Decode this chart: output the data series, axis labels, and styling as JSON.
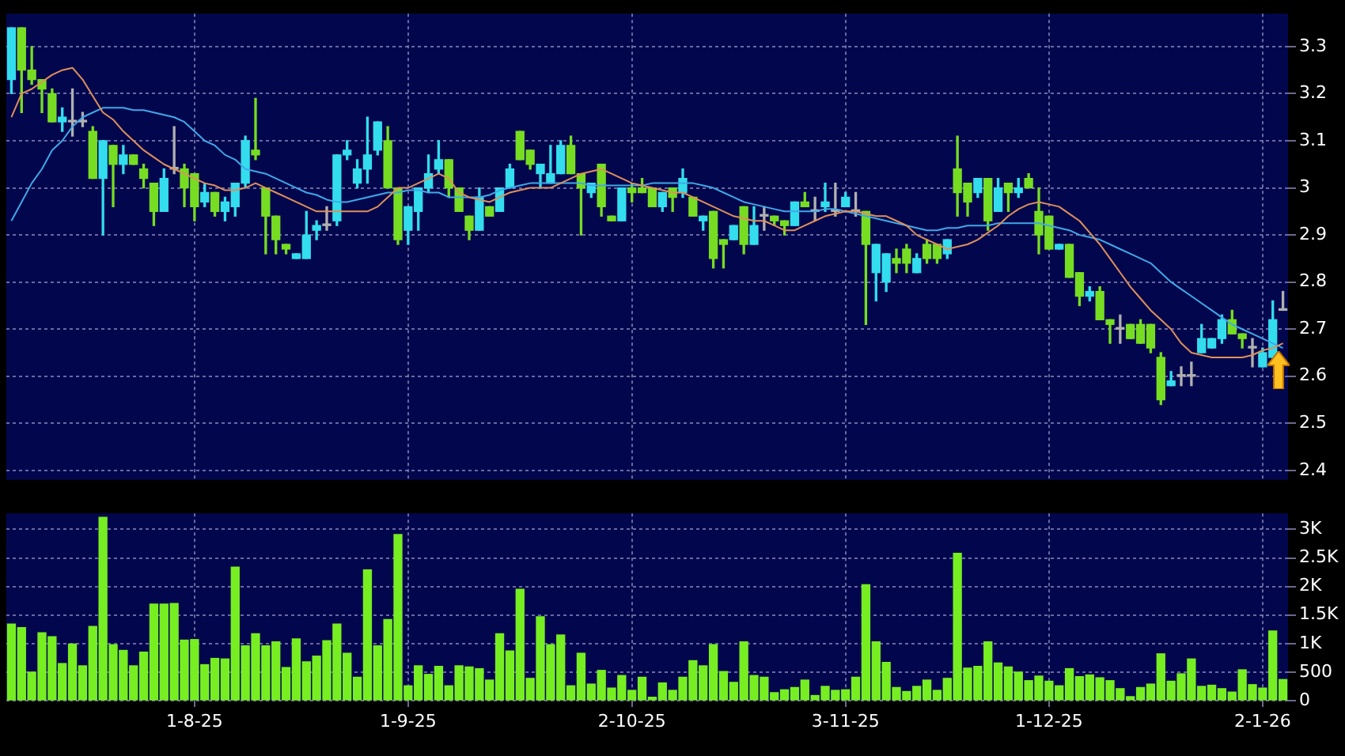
{
  "chart_data": [
    {
      "type": "candlestick",
      "ohlc": [
        [
          3.23,
          3.34,
          3.2,
          3.34
        ],
        [
          3.34,
          3.34,
          3.16,
          3.25
        ],
        [
          3.25,
          3.3,
          3.22,
          3.23
        ],
        [
          3.23,
          3.23,
          3.16,
          3.21
        ],
        [
          3.2,
          3.21,
          3.14,
          3.14
        ],
        [
          3.14,
          3.17,
          3.12,
          3.15
        ],
        [
          3.14,
          3.21,
          3.11,
          3.14
        ],
        [
          3.14,
          3.16,
          3.13,
          3.14
        ],
        [
          3.12,
          3.13,
          3.02,
          3.02
        ],
        [
          3.02,
          3.1,
          2.9,
          3.1
        ],
        [
          3.09,
          3.09,
          2.96,
          3.05
        ],
        [
          3.05,
          3.09,
          3.03,
          3.07
        ],
        [
          3.07,
          3.07,
          3.05,
          3.05
        ],
        [
          3.04,
          3.05,
          3.0,
          3.02
        ],
        [
          3.01,
          3.01,
          2.92,
          2.95
        ],
        [
          2.95,
          3.04,
          2.95,
          3.02
        ],
        [
          3.04,
          3.13,
          3.03,
          3.04
        ],
        [
          3.04,
          3.05,
          2.96,
          3.0
        ],
        [
          3.03,
          3.03,
          2.93,
          2.96
        ],
        [
          2.97,
          3.01,
          2.96,
          2.99
        ],
        [
          2.99,
          2.99,
          2.94,
          2.95
        ],
        [
          2.95,
          2.98,
          2.93,
          2.97
        ],
        [
          2.96,
          3.01,
          2.94,
          3.01
        ],
        [
          3.01,
          3.11,
          3.0,
          3.1
        ],
        [
          3.08,
          3.19,
          3.06,
          3.07
        ],
        [
          3.0,
          3.0,
          2.86,
          2.94
        ],
        [
          2.94,
          2.94,
          2.86,
          2.89
        ],
        [
          2.88,
          2.88,
          2.86,
          2.87
        ],
        [
          2.85,
          2.86,
          2.85,
          2.86
        ],
        [
          2.85,
          2.95,
          2.85,
          2.9
        ],
        [
          2.91,
          2.93,
          2.89,
          2.92
        ],
        [
          2.92,
          2.96,
          2.91,
          2.92
        ],
        [
          2.93,
          3.07,
          2.92,
          3.07
        ],
        [
          3.07,
          3.1,
          3.06,
          3.08
        ],
        [
          3.01,
          3.06,
          3.0,
          3.04
        ],
        [
          3.04,
          3.15,
          3.01,
          3.07
        ],
        [
          3.08,
          3.14,
          3.07,
          3.14
        ],
        [
          3.1,
          3.13,
          3.0,
          3.0
        ],
        [
          3.0,
          3.0,
          2.88,
          2.89
        ],
        [
          2.91,
          2.96,
          2.88,
          2.96
        ],
        [
          2.95,
          3.0,
          2.91,
          3.0
        ],
        [
          3.0,
          3.07,
          2.99,
          3.03
        ],
        [
          3.04,
          3.1,
          3.03,
          3.06
        ],
        [
          3.06,
          3.06,
          2.98,
          3.0
        ],
        [
          3.0,
          3.0,
          2.95,
          2.95
        ],
        [
          2.94,
          2.94,
          2.89,
          2.91
        ],
        [
          2.91,
          3.0,
          2.91,
          2.98
        ],
        [
          2.96,
          2.96,
          2.94,
          2.94
        ],
        [
          2.95,
          3.0,
          2.95,
          3.0
        ],
        [
          3.0,
          3.05,
          3.0,
          3.04
        ],
        [
          3.12,
          3.12,
          3.06,
          3.06
        ],
        [
          3.08,
          3.08,
          3.04,
          3.05
        ],
        [
          3.03,
          3.05,
          3.0,
          3.05
        ],
        [
          3.01,
          3.09,
          3.01,
          3.03
        ],
        [
          3.03,
          3.1,
          3.03,
          3.09
        ],
        [
          3.09,
          3.11,
          3.03,
          3.03
        ],
        [
          3.03,
          3.03,
          2.9,
          3.0
        ],
        [
          2.99,
          3.01,
          2.98,
          3.01
        ],
        [
          3.05,
          3.05,
          2.94,
          2.96
        ],
        [
          2.94,
          2.94,
          2.93,
          2.93
        ],
        [
          2.93,
          3.0,
          2.93,
          3.0
        ],
        [
          3.0,
          3.01,
          2.97,
          2.99
        ],
        [
          3.0,
          3.02,
          2.99,
          2.99
        ],
        [
          3.0,
          3.0,
          2.96,
          2.96
        ],
        [
          2.96,
          2.99,
          2.95,
          2.99
        ],
        [
          3.0,
          3.0,
          2.95,
          2.98
        ],
        [
          2.99,
          3.04,
          2.98,
          3.02
        ],
        [
          2.98,
          2.98,
          2.94,
          2.94
        ],
        [
          2.93,
          2.94,
          2.91,
          2.94
        ],
        [
          2.95,
          2.95,
          2.83,
          2.85
        ],
        [
          2.89,
          2.89,
          2.83,
          2.88
        ],
        [
          2.89,
          2.92,
          2.89,
          2.92
        ],
        [
          2.96,
          2.96,
          2.86,
          2.88
        ],
        [
          2.88,
          2.96,
          2.88,
          2.92
        ],
        [
          2.94,
          2.96,
          2.91,
          2.94
        ],
        [
          2.94,
          2.94,
          2.92,
          2.93
        ],
        [
          2.93,
          2.93,
          2.9,
          2.92
        ],
        [
          2.92,
          2.97,
          2.92,
          2.97
        ],
        [
          2.97,
          2.99,
          2.96,
          2.96
        ],
        [
          2.95,
          2.98,
          2.93,
          2.95
        ],
        [
          2.96,
          3.01,
          2.95,
          2.97
        ],
        [
          2.95,
          3.01,
          2.94,
          2.95
        ],
        [
          2.96,
          2.99,
          2.96,
          2.98
        ],
        [
          2.95,
          2.99,
          2.94,
          2.95
        ],
        [
          2.95,
          2.95,
          2.71,
          2.88
        ],
        [
          2.82,
          2.88,
          2.76,
          2.88
        ],
        [
          2.8,
          2.86,
          2.78,
          2.86
        ],
        [
          2.85,
          2.87,
          2.82,
          2.84
        ],
        [
          2.87,
          2.88,
          2.82,
          2.84
        ],
        [
          2.82,
          2.86,
          2.82,
          2.85
        ],
        [
          2.88,
          2.89,
          2.84,
          2.85
        ],
        [
          2.88,
          2.88,
          2.84,
          2.85
        ],
        [
          2.86,
          2.89,
          2.85,
          2.89
        ],
        [
          3.04,
          3.11,
          2.94,
          2.99
        ],
        [
          3.01,
          3.01,
          2.94,
          2.97
        ],
        [
          2.99,
          3.02,
          2.98,
          3.02
        ],
        [
          3.02,
          3.02,
          2.91,
          2.93
        ],
        [
          2.95,
          3.02,
          2.95,
          3.0
        ],
        [
          3.01,
          3.01,
          2.95,
          2.99
        ],
        [
          2.99,
          3.02,
          2.98,
          3.0
        ],
        [
          3.02,
          3.03,
          3.0,
          3.0
        ],
        [
          2.95,
          3.0,
          2.86,
          2.9
        ],
        [
          2.94,
          2.94,
          2.87,
          2.87
        ],
        [
          2.87,
          2.88,
          2.87,
          2.88
        ],
        [
          2.88,
          2.88,
          2.81,
          2.81
        ],
        [
          2.82,
          2.82,
          2.75,
          2.77
        ],
        [
          2.77,
          2.79,
          2.76,
          2.78
        ],
        [
          2.78,
          2.79,
          2.72,
          2.72
        ],
        [
          2.72,
          2.72,
          2.67,
          2.71
        ],
        [
          2.7,
          2.73,
          2.67,
          2.7
        ],
        [
          2.71,
          2.71,
          2.68,
          2.68
        ],
        [
          2.71,
          2.72,
          2.67,
          2.67
        ],
        [
          2.71,
          2.71,
          2.65,
          2.66
        ],
        [
          2.64,
          2.65,
          2.54,
          2.55
        ],
        [
          2.58,
          2.61,
          2.58,
          2.59
        ],
        [
          2.6,
          2.62,
          2.58,
          2.6
        ],
        [
          2.6,
          2.63,
          2.58,
          2.6
        ],
        [
          2.65,
          2.71,
          2.65,
          2.68
        ],
        [
          2.66,
          2.68,
          2.66,
          2.68
        ],
        [
          2.68,
          2.73,
          2.67,
          2.72
        ],
        [
          2.72,
          2.74,
          2.69,
          2.69
        ],
        [
          2.69,
          2.69,
          2.66,
          2.68
        ],
        [
          2.66,
          2.68,
          2.62,
          2.66
        ],
        [
          2.62,
          2.66,
          2.62,
          2.65
        ],
        [
          2.64,
          2.76,
          2.64,
          2.72
        ],
        [
          2.74,
          2.78,
          2.74,
          2.74
        ]
      ],
      "colors": [
        "#33ddee",
        "#77dd22",
        "#77dd22",
        "#77dd22",
        "#77dd22",
        "#33ddee",
        "#b0b0b0",
        "#b0b0b0",
        "#77dd22",
        "#33ddee",
        "#77dd22",
        "#33ddee",
        "#77dd22",
        "#77dd22",
        "#77dd22",
        "#33ddee",
        "#b0b0b0",
        "#77dd22",
        "#77dd22",
        "#33ddee",
        "#77dd22",
        "#33ddee",
        "#33ddee",
        "#33ddee",
        "#77dd22",
        "#77dd22",
        "#77dd22",
        "#77dd22",
        "#33ddee",
        "#33ddee",
        "#33ddee",
        "#b0b0b0",
        "#33ddee",
        "#33ddee",
        "#33ddee",
        "#33ddee",
        "#33ddee",
        "#77dd22",
        "#77dd22",
        "#33ddee",
        "#33ddee",
        "#33ddee",
        "#33ddee",
        "#77dd22",
        "#77dd22",
        "#77dd22",
        "#33ddee",
        "#77dd22",
        "#33ddee",
        "#33ddee",
        "#77dd22",
        "#77dd22",
        "#33ddee",
        "#33ddee",
        "#33ddee",
        "#77dd22",
        "#77dd22",
        "#33ddee",
        "#77dd22",
        "#77dd22",
        "#33ddee",
        "#77dd22",
        "#77dd22",
        "#77dd22",
        "#33ddee",
        "#77dd22",
        "#33ddee",
        "#77dd22",
        "#33ddee",
        "#77dd22",
        "#77dd22",
        "#33ddee",
        "#77dd22",
        "#33ddee",
        "#b0b0b0",
        "#77dd22",
        "#77dd22",
        "#33ddee",
        "#77dd22",
        "#b0b0b0",
        "#33ddee",
        "#b0b0b0",
        "#33ddee",
        "#b0b0b0",
        "#77dd22",
        "#33ddee",
        "#33ddee",
        "#77dd22",
        "#77dd22",
        "#33ddee",
        "#77dd22",
        "#77dd22",
        "#33ddee",
        "#77dd22",
        "#77dd22",
        "#33ddee",
        "#77dd22",
        "#33ddee",
        "#77dd22",
        "#33ddee",
        "#77dd22",
        "#77dd22",
        "#77dd22",
        "#33ddee",
        "#77dd22",
        "#77dd22",
        "#33ddee",
        "#77dd22",
        "#77dd22",
        "#b0b0b0",
        "#77dd22",
        "#77dd22",
        "#77dd22",
        "#77dd22",
        "#33ddee",
        "#b0b0b0",
        "#b0b0b0",
        "#33ddee",
        "#33ddee",
        "#33ddee",
        "#77dd22",
        "#77dd22",
        "#b0b0b0",
        "#33ddee",
        "#33ddee",
        "#b0b0b0"
      ],
      "series": [
        {
          "type": "line",
          "color": "#e0905a",
          "values": [
            3.15,
            3.2,
            3.21,
            3.225,
            3.24,
            3.25,
            3.255,
            3.23,
            3.195,
            3.16,
            3.145,
            3.12,
            3.1,
            3.08,
            3.065,
            3.05,
            3.04,
            3.03,
            3.02,
            3.01,
            3.005,
            2.995,
            2.995,
            3.0,
            3.01,
            3.0,
            2.99,
            2.98,
            2.97,
            2.96,
            2.95,
            2.95,
            2.95,
            2.95,
            2.95,
            2.95,
            2.96,
            2.98,
            3.0,
            3.0,
            3.01,
            3.02,
            3.03,
            3.02,
            2.99,
            2.98,
            2.975,
            2.97,
            2.98,
            2.99,
            2.995,
            3.0,
            3.0,
            3.0,
            3.01,
            3.02,
            3.03,
            3.035,
            3.04,
            3.03,
            3.02,
            3.01,
            3.005,
            3.0,
            2.995,
            2.99,
            2.99,
            2.98,
            2.97,
            2.96,
            2.95,
            2.94,
            2.935,
            2.93,
            2.93,
            2.92,
            2.91,
            2.91,
            2.92,
            2.93,
            2.94,
            2.945,
            2.95,
            2.95,
            2.945,
            2.94,
            2.94,
            2.93,
            2.92,
            2.9,
            2.89,
            2.88,
            2.87,
            2.875,
            2.88,
            2.89,
            2.905,
            2.92,
            2.94,
            2.955,
            2.965,
            2.97,
            2.965,
            2.96,
            2.945,
            2.93,
            2.905,
            2.88,
            2.85,
            2.82,
            2.79,
            2.765,
            2.74,
            2.72,
            2.7,
            2.67,
            2.65,
            2.645,
            2.64,
            2.64,
            2.64,
            2.64,
            2.645,
            2.655,
            2.66,
            2.67
          ]
        },
        {
          "type": "line",
          "color": "#40a8e8",
          "values": [
            2.93,
            2.97,
            3.01,
            3.04,
            3.08,
            3.1,
            3.13,
            3.15,
            3.16,
            3.17,
            3.17,
            3.17,
            3.165,
            3.165,
            3.16,
            3.155,
            3.15,
            3.14,
            3.12,
            3.1,
            3.09,
            3.07,
            3.06,
            3.04,
            3.035,
            3.03,
            3.02,
            3.01,
            3.0,
            2.99,
            2.985,
            2.975,
            2.97,
            2.97,
            2.975,
            2.98,
            2.985,
            2.99,
            2.99,
            2.995,
            2.995,
            2.99,
            2.99,
            2.98,
            2.98,
            2.98,
            2.98,
            2.985,
            2.995,
            3.0,
            3.005,
            3.01,
            3.01,
            3.01,
            3.01,
            3.01,
            3.01,
            3.005,
            3.005,
            3.005,
            3.005,
            3.005,
            3.005,
            3.01,
            3.01,
            3.01,
            3.01,
            3.01,
            3.005,
            3.0,
            2.99,
            2.98,
            2.97,
            2.965,
            2.96,
            2.955,
            2.95,
            2.95,
            2.95,
            2.95,
            2.955,
            2.955,
            2.95,
            2.945,
            2.94,
            2.935,
            2.93,
            2.925,
            2.92,
            2.915,
            2.91,
            2.91,
            2.915,
            2.915,
            2.92,
            2.92,
            2.92,
            2.925,
            2.925,
            2.925,
            2.925,
            2.925,
            2.92,
            2.915,
            2.91,
            2.9,
            2.895,
            2.89,
            2.88,
            2.87,
            2.86,
            2.85,
            2.84,
            2.82,
            2.8,
            2.785,
            2.77,
            2.755,
            2.74,
            2.725,
            2.71,
            2.7,
            2.69,
            2.68,
            2.67,
            2.66
          ]
        }
      ],
      "ylim": [
        2.38,
        3.37
      ],
      "yticks": [
        2.4,
        2.5,
        2.6,
        2.7,
        2.8,
        2.9,
        3,
        3.1,
        3.2,
        3.3
      ],
      "grid": true,
      "tick_labels": "y"
    },
    {
      "type": "bar",
      "categories": [
        null,
        null,
        null,
        null,
        null,
        null,
        null,
        null,
        null,
        null,
        null,
        null,
        null,
        null,
        null,
        null,
        null,
        null,
        "1-8-25",
        null,
        null,
        null,
        null,
        null,
        null,
        null,
        null,
        null,
        null,
        null,
        null,
        null,
        null,
        null,
        null,
        null,
        null,
        null,
        null,
        "1-9-25",
        null,
        null,
        null,
        null,
        null,
        null,
        null,
        null,
        null,
        null,
        null,
        null,
        null,
        null,
        null,
        null,
        null,
        null,
        null,
        null,
        null,
        "2-10-25",
        null,
        null,
        null,
        null,
        null,
        null,
        null,
        null,
        null,
        null,
        null,
        null,
        null,
        null,
        null,
        null,
        null,
        null,
        null,
        null,
        "3-11-25",
        null,
        null,
        null,
        null,
        null,
        null,
        null,
        null,
        null,
        null,
        null,
        null,
        null,
        null,
        null,
        null,
        null,
        null,
        null,
        "1-12-25",
        null,
        null,
        null,
        null,
        null,
        null,
        null,
        null,
        null,
        null,
        null,
        null,
        null,
        null,
        null,
        null,
        null,
        null,
        null,
        null,
        "2-1-26",
        null,
        null
      ],
      "values": [
        1340,
        1280,
        500,
        1190,
        1120,
        650,
        990,
        610,
        1300,
        3210,
        980,
        880,
        610,
        850,
        1690,
        1690,
        1700,
        1060,
        1070,
        630,
        740,
        730,
        2340,
        960,
        1170,
        960,
        1030,
        580,
        1080,
        680,
        780,
        1050,
        1340,
        830,
        410,
        2290,
        960,
        1420,
        2910,
        260,
        610,
        460,
        600,
        260,
        610,
        590,
        560,
        360,
        1170,
        870,
        1950,
        390,
        1470,
        980,
        1150,
        260,
        830,
        290,
        530,
        220,
        440,
        180,
        410,
        60,
        310,
        180,
        410,
        700,
        610,
        980,
        510,
        320,
        1030,
        440,
        410,
        140,
        190,
        230,
        360,
        90,
        250,
        180,
        190,
        410,
        2030,
        1030,
        670,
        230,
        160,
        250,
        360,
        180,
        390,
        2580,
        570,
        600,
        1030,
        660,
        590,
        500,
        350,
        430,
        340,
        260,
        560,
        420,
        450,
        400,
        350,
        210,
        70,
        230,
        290,
        820,
        340,
        470,
        730,
        250,
        270,
        210,
        150,
        540,
        280,
        220,
        1220,
        370
      ],
      "color": "#77ee22",
      "ylim": [
        0,
        3280
      ],
      "yticks": [
        0,
        500,
        {
          "value": 1000,
          "label": "1K"
        },
        {
          "value": 1500,
          "label": "1.5K"
        },
        {
          "value": 2000,
          "label": "2K"
        },
        {
          "value": 2500,
          "label": "2.5K"
        },
        {
          "value": 3000,
          "label": "3K"
        }
      ],
      "grid": true
    }
  ]
}
